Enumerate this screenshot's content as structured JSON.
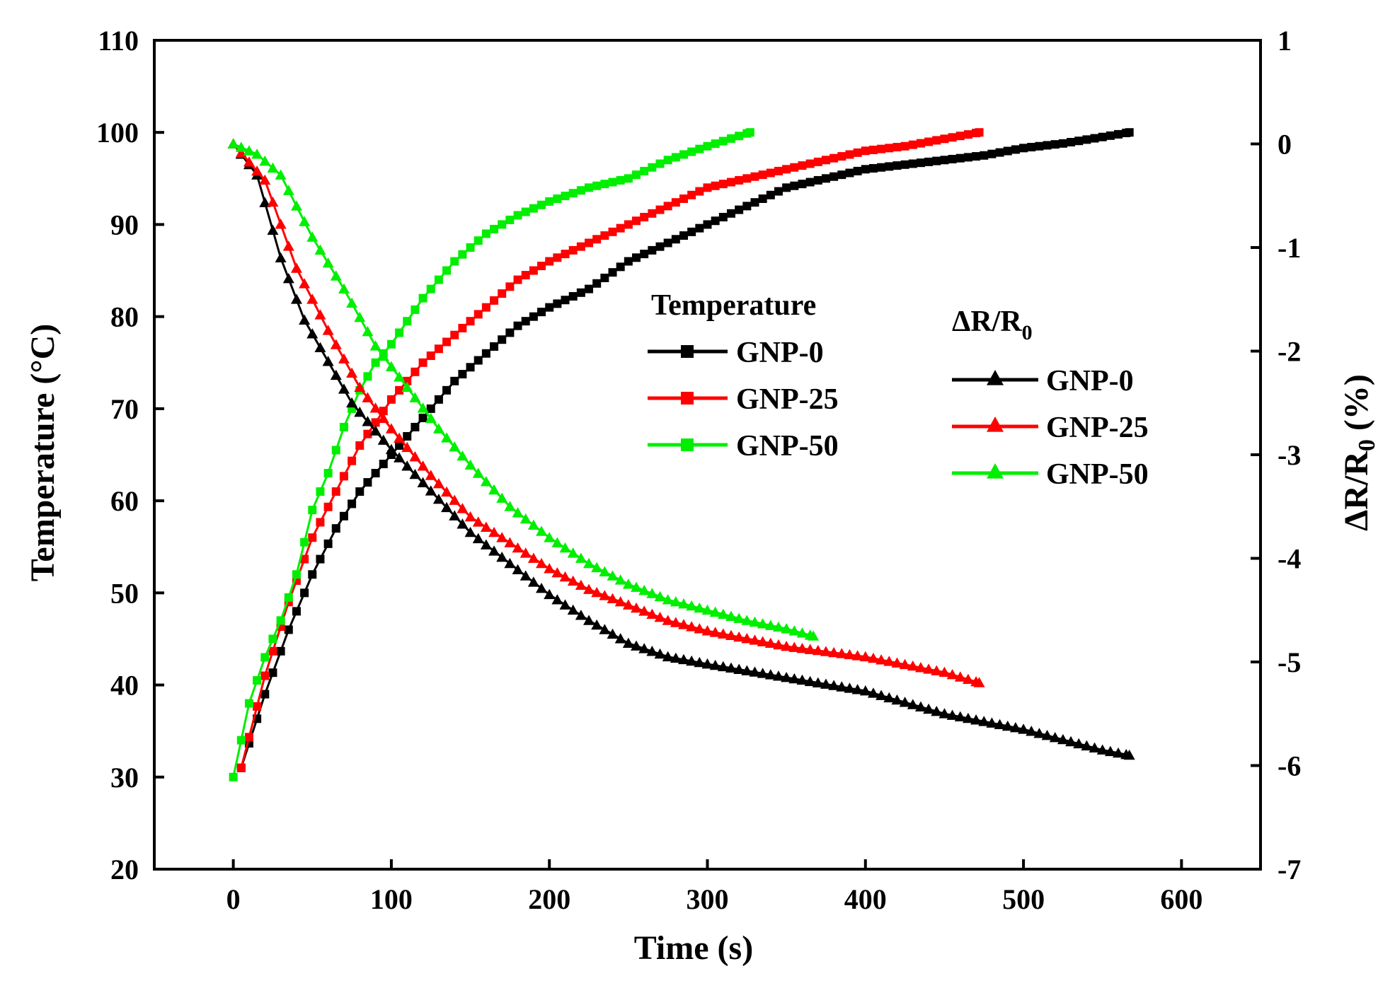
{
  "chart_data": {
    "type": "line",
    "xlabel": "Time (s)",
    "ylabel_left": "Temperature (°C)",
    "ylabel_right_main": "ΔR/R",
    "ylabel_right_sub": "0",
    "ylabel_right_suffix": " (%)",
    "xlim": [
      -50,
      650
    ],
    "ylim_left": [
      20,
      110
    ],
    "ylim_right": [
      -7,
      1
    ],
    "x_ticks": [
      0,
      100,
      200,
      300,
      400,
      500,
      600
    ],
    "y_left_ticks": [
      20,
      30,
      40,
      50,
      60,
      70,
      80,
      90,
      100,
      110
    ],
    "y_right_ticks": [
      -7,
      -6,
      -5,
      -4,
      -3,
      -2,
      -1,
      0,
      1
    ],
    "legend_temperature_title": "Temperature",
    "legend_resistance_title_main": "ΔR/R",
    "legend_resistance_title_sub": "0",
    "colors": {
      "GNP-0": "#000000",
      "GNP-25": "#ff0000",
      "GNP-50": "#00ee00"
    },
    "temperature_series": [
      {
        "name": "GNP-0",
        "x": [
          5,
          20,
          35,
          50,
          65,
          80,
          100,
          120,
          140,
          160,
          180,
          200,
          225,
          250,
          275,
          300,
          325,
          350,
          375,
          400,
          425,
          450,
          475,
          500,
          525,
          550,
          567
        ],
        "y": [
          31,
          39,
          46,
          52,
          57,
          61,
          65,
          69,
          73,
          76,
          79,
          81,
          83,
          86,
          88,
          90,
          92,
          94,
          95,
          96,
          96.5,
          97,
          97.5,
          98.3,
          98.8,
          99.5,
          100
        ]
      },
      {
        "name": "GNP-25",
        "x": [
          5,
          20,
          35,
          50,
          65,
          80,
          100,
          120,
          140,
          160,
          180,
          200,
          225,
          250,
          275,
          300,
          325,
          350,
          375,
          400,
          425,
          450,
          472
        ],
        "y": [
          31,
          41,
          49,
          56,
          61,
          66,
          71,
          75,
          78,
          81,
          84,
          86,
          88,
          90,
          92,
          94,
          95,
          96,
          97,
          98,
          98.5,
          99.3,
          100
        ]
      },
      {
        "name": "GNP-50",
        "x": [
          0,
          10,
          20,
          30,
          40,
          50,
          60,
          70,
          80,
          90,
          100,
          120,
          140,
          160,
          180,
          200,
          225,
          250,
          275,
          300,
          327
        ],
        "y": [
          30,
          38,
          43,
          47,
          52,
          59,
          63,
          68,
          72,
          75,
          77,
          82,
          86,
          89,
          91,
          92.5,
          94,
          95,
          97,
          98.5,
          100
        ]
      }
    ],
    "resistance_series": [
      {
        "name": "GNP-0",
        "x": [
          0,
          15,
          30,
          45,
          60,
          75,
          100,
          125,
          150,
          175,
          200,
          225,
          250,
          275,
          300,
          350,
          400,
          450,
          500,
          550,
          567
        ],
        "y": [
          0,
          -0.3,
          -1.1,
          -1.7,
          -2.1,
          -2.5,
          -2.95,
          -3.35,
          -3.75,
          -4.05,
          -4.35,
          -4.6,
          -4.82,
          -4.95,
          -5.02,
          -5.15,
          -5.28,
          -5.5,
          -5.65,
          -5.85,
          -5.9
        ]
      },
      {
        "name": "GNP-25",
        "x": [
          0,
          20,
          40,
          60,
          80,
          100,
          125,
          150,
          175,
          200,
          225,
          250,
          275,
          300,
          350,
          400,
          450,
          472
        ],
        "y": [
          0,
          -0.35,
          -1.2,
          -1.8,
          -2.35,
          -2.75,
          -3.2,
          -3.6,
          -3.85,
          -4.1,
          -4.3,
          -4.45,
          -4.6,
          -4.7,
          -4.85,
          -4.95,
          -5.1,
          -5.2
        ]
      },
      {
        "name": "GNP-50",
        "x": [
          0,
          15,
          30,
          50,
          70,
          90,
          110,
          130,
          150,
          175,
          200,
          225,
          250,
          275,
          300,
          325,
          350,
          367
        ],
        "y": [
          0,
          -0.1,
          -0.3,
          -0.9,
          -1.4,
          -1.95,
          -2.35,
          -2.75,
          -3.1,
          -3.5,
          -3.8,
          -4.05,
          -4.25,
          -4.4,
          -4.5,
          -4.6,
          -4.68,
          -4.75
        ]
      }
    ]
  }
}
